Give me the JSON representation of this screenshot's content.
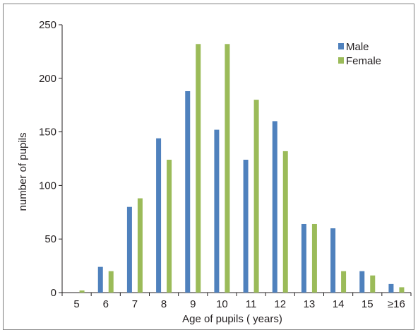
{
  "chart_data": {
    "type": "bar",
    "title": "",
    "xlabel": "Age of pupils ( years)",
    "ylabel": "number of pupils",
    "categories": [
      "5",
      "6",
      "7",
      "8",
      "9",
      "10",
      "11",
      "12",
      "13",
      "14",
      "15",
      "≥16"
    ],
    "ylim": [
      0,
      250
    ],
    "yticks": [
      "0",
      "50",
      "100",
      "150",
      "200",
      "250"
    ],
    "grid": false,
    "legend_position": "top-right",
    "series": [
      {
        "name": "Male",
        "color": "#4f81bd",
        "values": [
          0,
          24,
          80,
          144,
          188,
          152,
          124,
          160,
          64,
          60,
          20,
          8
        ]
      },
      {
        "name": "Female",
        "color": "#9bbb59",
        "values": [
          2,
          20,
          88,
          124,
          232,
          232,
          180,
          132,
          64,
          20,
          16,
          5
        ]
      }
    ]
  }
}
